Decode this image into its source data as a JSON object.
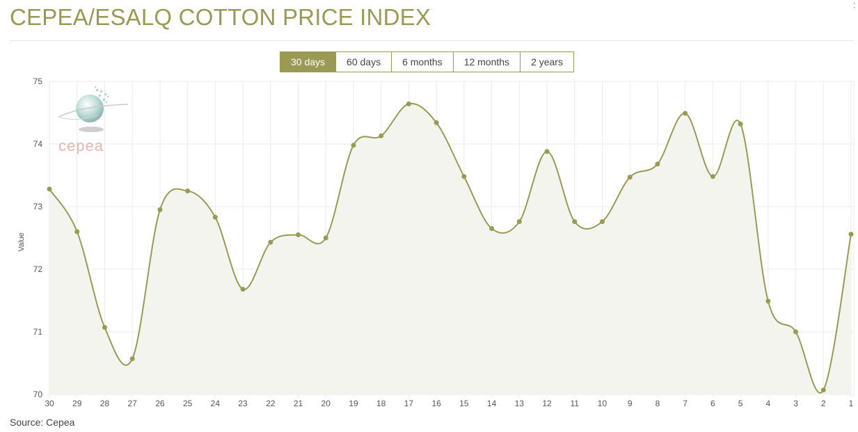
{
  "header": {
    "title": "CEPEA/ESALQ COTTON PRICE INDEX",
    "menu_icon": "vertical-dots-icon"
  },
  "tabs": [
    {
      "label": "30 days",
      "active": true
    },
    {
      "label": "60 days",
      "active": false
    },
    {
      "label": "6 months",
      "active": false
    },
    {
      "label": "12 months",
      "active": false
    },
    {
      "label": "2 years",
      "active": false
    }
  ],
  "logo": {
    "text": "cepea"
  },
  "footer": {
    "source": "Source: Cepea"
  },
  "colors": {
    "accent": "#9a9a55",
    "area_fill": "#f4f4ee",
    "grid": "#ebebeb"
  },
  "chart_data": {
    "type": "area",
    "ylabel": "Value",
    "xlabel": "",
    "ylim": [
      70,
      75
    ],
    "yticks": [
      70,
      71,
      72,
      73,
      74,
      75
    ],
    "grid": true,
    "categories": [
      "30",
      "29",
      "28",
      "27",
      "26",
      "25",
      "24",
      "23",
      "22",
      "21",
      "20",
      "19",
      "18",
      "17",
      "16",
      "15",
      "14",
      "13",
      "12",
      "11",
      "10",
      "9",
      "8",
      "7",
      "6",
      "5",
      "4",
      "3",
      "2",
      "1"
    ],
    "series": [
      {
        "values": [
          73.28,
          72.6,
          71.07,
          70.57,
          72.95,
          73.25,
          72.83,
          71.68,
          72.43,
          72.55,
          72.5,
          73.98,
          74.13,
          74.64,
          74.34,
          73.48,
          72.65,
          72.76,
          73.88,
          72.76,
          72.76,
          73.47,
          73.68,
          74.49,
          73.48,
          74.32,
          71.49,
          71.0,
          70.07,
          72.56
        ]
      }
    ]
  }
}
